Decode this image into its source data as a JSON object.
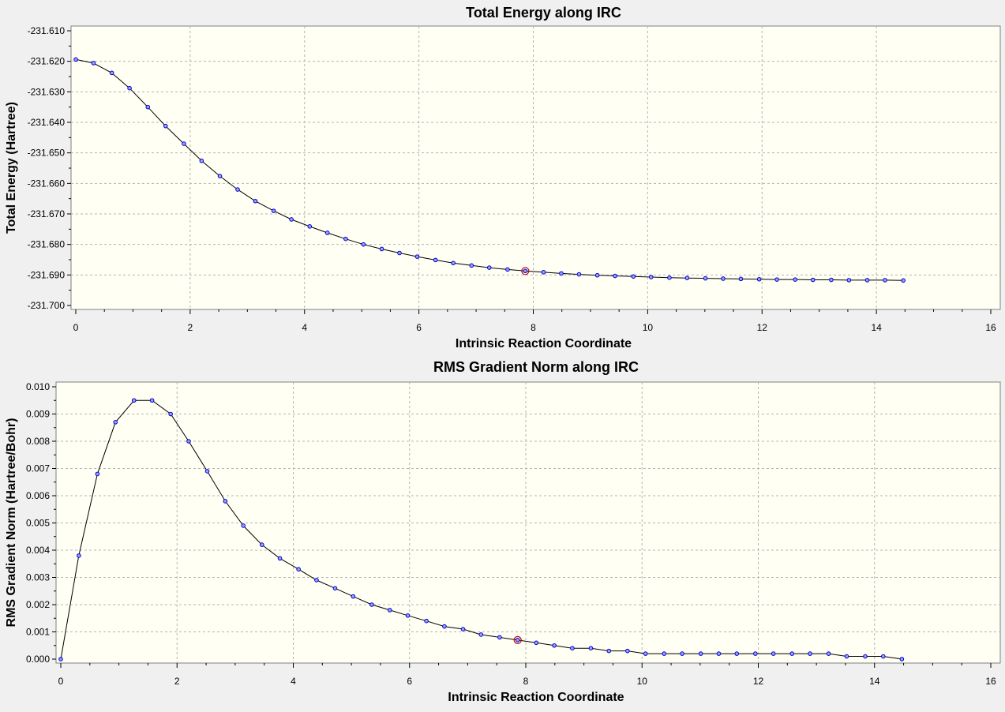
{
  "chart_data": [
    {
      "type": "line",
      "title": "Total Energy along IRC",
      "xlabel": "Intrinsic Reaction Coordinate",
      "ylabel": "Total Energy (Hartree)",
      "xlim": [
        0,
        16
      ],
      "ylim": [
        -231.7,
        -231.61
      ],
      "x_ticks": [
        "0",
        "2",
        "4",
        "6",
        "8",
        "10",
        "12",
        "14",
        "16"
      ],
      "y_ticks": [
        "-231.610",
        "-231.620",
        "-231.630",
        "-231.640",
        "-231.650",
        "-231.660",
        "-231.670",
        "-231.680",
        "-231.690",
        "-231.700"
      ],
      "grid": true,
      "x": [
        0,
        0.31,
        0.63,
        0.94,
        1.26,
        1.57,
        1.89,
        2.2,
        2.52,
        2.83,
        3.14,
        3.46,
        3.77,
        4.09,
        4.4,
        4.72,
        5.03,
        5.35,
        5.66,
        5.97,
        6.29,
        6.6,
        6.92,
        7.23,
        7.55,
        7.86,
        8.18,
        8.49,
        8.8,
        9.12,
        9.43,
        9.75,
        10.06,
        10.38,
        10.69,
        11.01,
        11.32,
        11.63,
        11.95,
        12.26,
        12.58,
        12.89,
        13.21,
        13.52,
        13.84,
        14.15,
        14.47
      ],
      "values": [
        -231.6194,
        -231.6206,
        -231.6238,
        -231.6288,
        -231.635,
        -231.6412,
        -231.647,
        -231.6526,
        -231.6576,
        -231.662,
        -231.6658,
        -231.669,
        -231.6718,
        -231.6741,
        -231.6762,
        -231.6782,
        -231.68,
        -231.6815,
        -231.6828,
        -231.684,
        -231.6851,
        -231.6861,
        -231.6869,
        -231.6876,
        -231.6882,
        -231.6887,
        -231.6891,
        -231.6895,
        -231.6898,
        -231.6901,
        -231.6903,
        -231.6905,
        -231.6907,
        -231.6909,
        -231.691,
        -231.6911,
        -231.6912,
        -231.6913,
        -231.6914,
        -231.6915,
        -231.6915,
        -231.6916,
        -231.6916,
        -231.6917,
        -231.6917,
        -231.6917,
        -231.6918
      ],
      "highlight_x": 7.86
    },
    {
      "type": "line",
      "title": "RMS Gradient Norm along IRC",
      "xlabel": "Intrinsic Reaction Coordinate",
      "ylabel": "RMS Gradient Norm (Hartree/Bohr)",
      "xlim": [
        0,
        16
      ],
      "ylim": [
        0,
        0.01
      ],
      "x_ticks": [
        "0",
        "2",
        "4",
        "6",
        "8",
        "10",
        "12",
        "14",
        "16"
      ],
      "y_ticks": [
        "0.010",
        "0.009",
        "0.008",
        "0.007",
        "0.006",
        "0.005",
        "0.004",
        "0.003",
        "0.002",
        "0.001",
        "0.000"
      ],
      "grid": true,
      "x": [
        0,
        0.31,
        0.63,
        0.94,
        1.26,
        1.57,
        1.89,
        2.2,
        2.52,
        2.83,
        3.14,
        3.46,
        3.77,
        4.09,
        4.4,
        4.72,
        5.03,
        5.35,
        5.66,
        5.97,
        6.29,
        6.6,
        6.92,
        7.23,
        7.55,
        7.86,
        8.18,
        8.49,
        8.8,
        9.12,
        9.43,
        9.75,
        10.06,
        10.38,
        10.69,
        11.01,
        11.32,
        11.63,
        11.95,
        12.26,
        12.58,
        12.89,
        13.21,
        13.52,
        13.84,
        14.15,
        14.47
      ],
      "values": [
        0.0,
        0.0038,
        0.0068,
        0.0087,
        0.0095,
        0.0095,
        0.009,
        0.008,
        0.0069,
        0.0058,
        0.0049,
        0.0042,
        0.0037,
        0.0033,
        0.0029,
        0.0026,
        0.0023,
        0.002,
        0.0018,
        0.0016,
        0.0014,
        0.0012,
        0.0011,
        0.0009,
        0.0008,
        0.0007,
        0.0006,
        0.0005,
        0.0004,
        0.0004,
        0.0003,
        0.0003,
        0.0002,
        0.0002,
        0.0002,
        0.0002,
        0.0002,
        0.0002,
        0.0002,
        0.0002,
        0.0002,
        0.0002,
        0.0002,
        0.0001,
        0.0001,
        0.0001,
        0.0
      ],
      "highlight_x": 7.86
    }
  ]
}
